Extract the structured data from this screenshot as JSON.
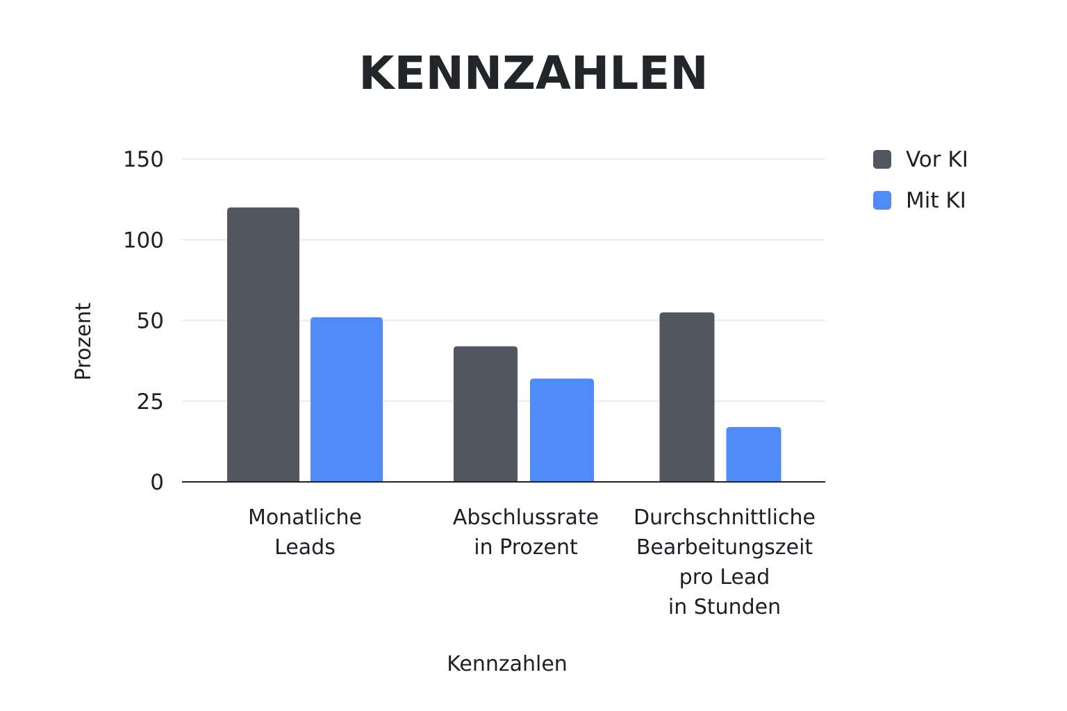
{
  "chart_data": {
    "type": "bar",
    "title": "KENNZAHLEN",
    "xlabel": "Kennzahlen",
    "ylabel": "Prozent",
    "categories": [
      [
        "Monatliche",
        "Leads"
      ],
      [
        "Abschlussrate",
        "in Prozent"
      ],
      [
        "Durchschnittliche",
        "Bearbeitungszeit",
        "pro Lead",
        "in Stunden"
      ]
    ],
    "y_ticks": [
      {
        "value": 0,
        "label": "0"
      },
      {
        "value": 25,
        "label": "25"
      },
      {
        "value": 50,
        "label": "50"
      },
      {
        "value": 100,
        "label": "100"
      },
      {
        "value": 150,
        "label": "150"
      }
    ],
    "series": [
      {
        "name": "Vor KI",
        "color": "#515661",
        "values": [
          120,
          42,
          55
        ]
      },
      {
        "name": "Mit KI",
        "color": "#4f8bf9",
        "values": [
          52,
          32,
          17
        ]
      }
    ],
    "grid": true,
    "legend_position": "top-right"
  }
}
